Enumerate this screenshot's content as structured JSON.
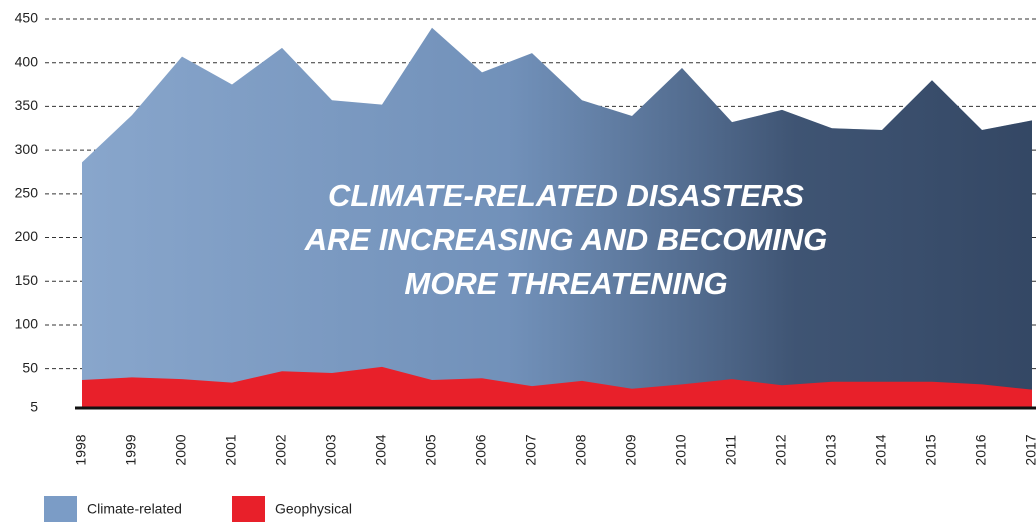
{
  "chart_data": {
    "type": "area",
    "title": [
      "CLIMATE-RELATED DISASTERS",
      "ARE INCREASING AND BECOMING",
      "MORE THREATENING"
    ],
    "categories": [
      "1998",
      "1999",
      "2000",
      "2001",
      "2002",
      "2003",
      "2004",
      "2005",
      "2006",
      "2007",
      "2008",
      "2009",
      "2010",
      "2011",
      "2012",
      "2013",
      "2014",
      "2015",
      "2016",
      "2017"
    ],
    "series": [
      {
        "name": "Climate-related",
        "color": "#7b9cc6",
        "values": [
          286,
          340,
          407,
          375,
          417,
          357,
          352,
          440,
          389,
          411,
          357,
          339,
          394,
          332,
          346,
          325,
          323,
          380,
          323,
          334
        ]
      },
      {
        "name": "Geophysical",
        "color": "#e8202a",
        "values": [
          37,
          40,
          38,
          34,
          47,
          45,
          52,
          37,
          39,
          30,
          36,
          27,
          32,
          38,
          31,
          35,
          35,
          35,
          32,
          26
        ]
      }
    ],
    "ylim": [
      5,
      450
    ],
    "yticks": [
      5,
      50,
      100,
      150,
      200,
      250,
      300,
      350,
      400,
      450
    ],
    "grid": true
  }
}
